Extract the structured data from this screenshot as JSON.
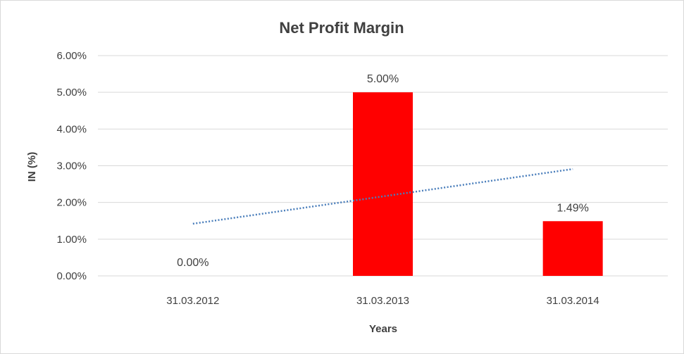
{
  "chart_data": {
    "type": "bar",
    "title": "Net Profit Margin",
    "xlabel": "Years",
    "ylabel": "IN (%)",
    "categories": [
      "31.03.2012",
      "31.03.2013",
      "31.03.2014"
    ],
    "values": [
      0.0,
      5.0,
      1.49
    ],
    "data_labels": [
      "0.00%",
      "5.00%",
      "1.49%"
    ],
    "ylim": [
      0,
      6
    ],
    "yticks": [
      0,
      1,
      2,
      3,
      4,
      5,
      6
    ],
    "ytick_labels": [
      "0.00%",
      "1.00%",
      "2.00%",
      "3.00%",
      "4.00%",
      "5.00%",
      "6.00%"
    ],
    "grid": true,
    "bar_color": "#ff0000",
    "trendline": {
      "type": "linear",
      "style": "dotted",
      "color": "#4a7ebb",
      "start": 1.42,
      "end": 2.91
    }
  }
}
